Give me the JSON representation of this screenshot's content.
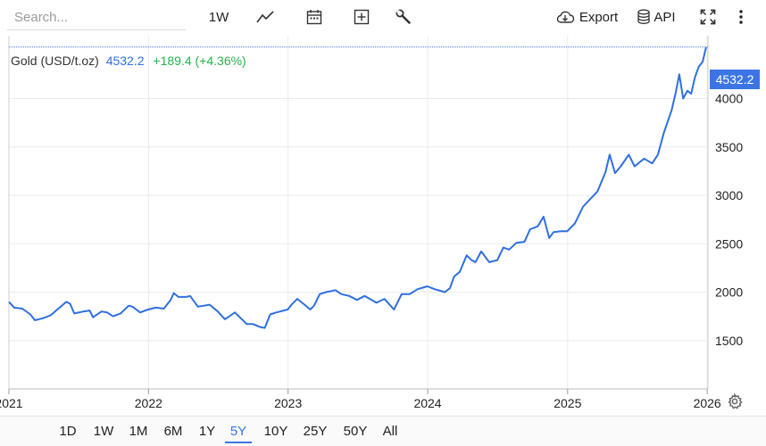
{
  "toolbar": {
    "search_placeholder": "Search...",
    "interval_label": "1W",
    "export_label": "Export",
    "api_label": "API",
    "icons": [
      "line-chart-icon",
      "calendar-icon",
      "add-box-icon",
      "wrench-icon",
      "cloud-download-icon",
      "database-icon",
      "fullscreen-icon",
      "more-vertical-icon"
    ]
  },
  "legend": {
    "name": "Gold (USD/t.oz)",
    "value": "4532.2",
    "change": "+189.4 (+4.36%)"
  },
  "price_tag": "4532.2",
  "colors": {
    "line": "#2f6fe0",
    "tag_bg": "#3b75e5",
    "change": "#27b34a",
    "grid": "#ebebeb"
  },
  "chart_data": {
    "type": "line",
    "title": "",
    "xlabel": "",
    "ylabel": "",
    "x_ticks": [
      "2021",
      "2022",
      "2023",
      "2024",
      "2025",
      "2026"
    ],
    "y_ticks": [
      1500,
      2000,
      2500,
      3000,
      3500,
      4000
    ],
    "ylim": [
      1000,
      4650
    ],
    "xlim": [
      "2021-01-01",
      "2026-01-03"
    ],
    "grid": true,
    "last_value": 4532.2,
    "series": [
      {
        "name": "Gold (USD/t.oz)",
        "points": [
          [
            "2021-01-01",
            1900
          ],
          [
            "2021-01-15",
            1840
          ],
          [
            "2021-02-05",
            1830
          ],
          [
            "2021-02-26",
            1770
          ],
          [
            "2021-03-10",
            1710
          ],
          [
            "2021-03-31",
            1730
          ],
          [
            "2021-04-20",
            1760
          ],
          [
            "2021-05-10",
            1830
          ],
          [
            "2021-05-31",
            1900
          ],
          [
            "2021-06-10",
            1880
          ],
          [
            "2021-06-21",
            1780
          ],
          [
            "2021-07-15",
            1800
          ],
          [
            "2021-07-31",
            1810
          ],
          [
            "2021-08-09",
            1740
          ],
          [
            "2021-08-31",
            1800
          ],
          [
            "2021-09-15",
            1790
          ],
          [
            "2021-09-30",
            1750
          ],
          [
            "2021-10-20",
            1780
          ],
          [
            "2021-11-10",
            1860
          ],
          [
            "2021-11-20",
            1850
          ],
          [
            "2021-12-10",
            1790
          ],
          [
            "2021-12-31",
            1820
          ],
          [
            "2022-01-20",
            1840
          ],
          [
            "2022-02-10",
            1830
          ],
          [
            "2022-02-28",
            1920
          ],
          [
            "2022-03-08",
            1990
          ],
          [
            "2022-03-20",
            1950
          ],
          [
            "2022-04-10",
            1950
          ],
          [
            "2022-04-20",
            1960
          ],
          [
            "2022-05-10",
            1850
          ],
          [
            "2022-06-10",
            1870
          ],
          [
            "2022-07-01",
            1800
          ],
          [
            "2022-07-20",
            1720
          ],
          [
            "2022-08-15",
            1790
          ],
          [
            "2022-09-15",
            1670
          ],
          [
            "2022-10-01",
            1670
          ],
          [
            "2022-10-20",
            1640
          ],
          [
            "2022-11-01",
            1630
          ],
          [
            "2022-11-15",
            1770
          ],
          [
            "2022-12-01",
            1790
          ],
          [
            "2022-12-31",
            1820
          ],
          [
            "2023-01-10",
            1870
          ],
          [
            "2023-01-25",
            1930
          ],
          [
            "2023-02-10",
            1880
          ],
          [
            "2023-02-28",
            1820
          ],
          [
            "2023-03-10",
            1860
          ],
          [
            "2023-03-25",
            1980
          ],
          [
            "2023-04-10",
            2000
          ],
          [
            "2023-05-05",
            2020
          ],
          [
            "2023-05-20",
            1980
          ],
          [
            "2023-06-10",
            1960
          ],
          [
            "2023-06-30",
            1920
          ],
          [
            "2023-07-20",
            1960
          ],
          [
            "2023-08-20",
            1890
          ],
          [
            "2023-09-10",
            1930
          ],
          [
            "2023-10-05",
            1820
          ],
          [
            "2023-10-25",
            1980
          ],
          [
            "2023-11-15",
            1980
          ],
          [
            "2023-12-05",
            2030
          ],
          [
            "2023-12-31",
            2060
          ],
          [
            "2024-01-20",
            2030
          ],
          [
            "2024-02-15",
            2000
          ],
          [
            "2024-02-28",
            2040
          ],
          [
            "2024-03-10",
            2160
          ],
          [
            "2024-03-25",
            2210
          ],
          [
            "2024-04-12",
            2380
          ],
          [
            "2024-04-25",
            2330
          ],
          [
            "2024-05-05",
            2310
          ],
          [
            "2024-05-20",
            2420
          ],
          [
            "2024-06-10",
            2310
          ],
          [
            "2024-07-01",
            2330
          ],
          [
            "2024-07-17",
            2460
          ],
          [
            "2024-08-01",
            2440
          ],
          [
            "2024-08-20",
            2510
          ],
          [
            "2024-09-10",
            2520
          ],
          [
            "2024-09-25",
            2650
          ],
          [
            "2024-10-15",
            2680
          ],
          [
            "2024-10-30",
            2780
          ],
          [
            "2024-11-14",
            2560
          ],
          [
            "2024-11-25",
            2620
          ],
          [
            "2024-12-15",
            2630
          ],
          [
            "2024-12-31",
            2630
          ],
          [
            "2025-01-20",
            2710
          ],
          [
            "2025-02-10",
            2880
          ],
          [
            "2025-02-24",
            2940
          ],
          [
            "2025-03-20",
            3040
          ],
          [
            "2025-04-10",
            3240
          ],
          [
            "2025-04-21",
            3420
          ],
          [
            "2025-05-05",
            3230
          ],
          [
            "2025-05-20",
            3300
          ],
          [
            "2025-06-10",
            3420
          ],
          [
            "2025-06-25",
            3300
          ],
          [
            "2025-07-20",
            3380
          ],
          [
            "2025-08-10",
            3330
          ],
          [
            "2025-08-25",
            3420
          ],
          [
            "2025-09-10",
            3650
          ],
          [
            "2025-09-30",
            3880
          ],
          [
            "2025-10-10",
            4050
          ],
          [
            "2025-10-20",
            4250
          ],
          [
            "2025-10-30",
            4000
          ],
          [
            "2025-11-10",
            4080
          ],
          [
            "2025-11-20",
            4050
          ],
          [
            "2025-11-30",
            4220
          ],
          [
            "2025-12-10",
            4330
          ],
          [
            "2025-12-20",
            4380
          ],
          [
            "2025-12-29",
            4532.2
          ]
        ]
      }
    ]
  },
  "ranges": {
    "items": [
      "1D",
      "1W",
      "1M",
      "6M",
      "1Y",
      "5Y",
      "10Y",
      "25Y",
      "50Y",
      "All"
    ],
    "active": "5Y"
  }
}
